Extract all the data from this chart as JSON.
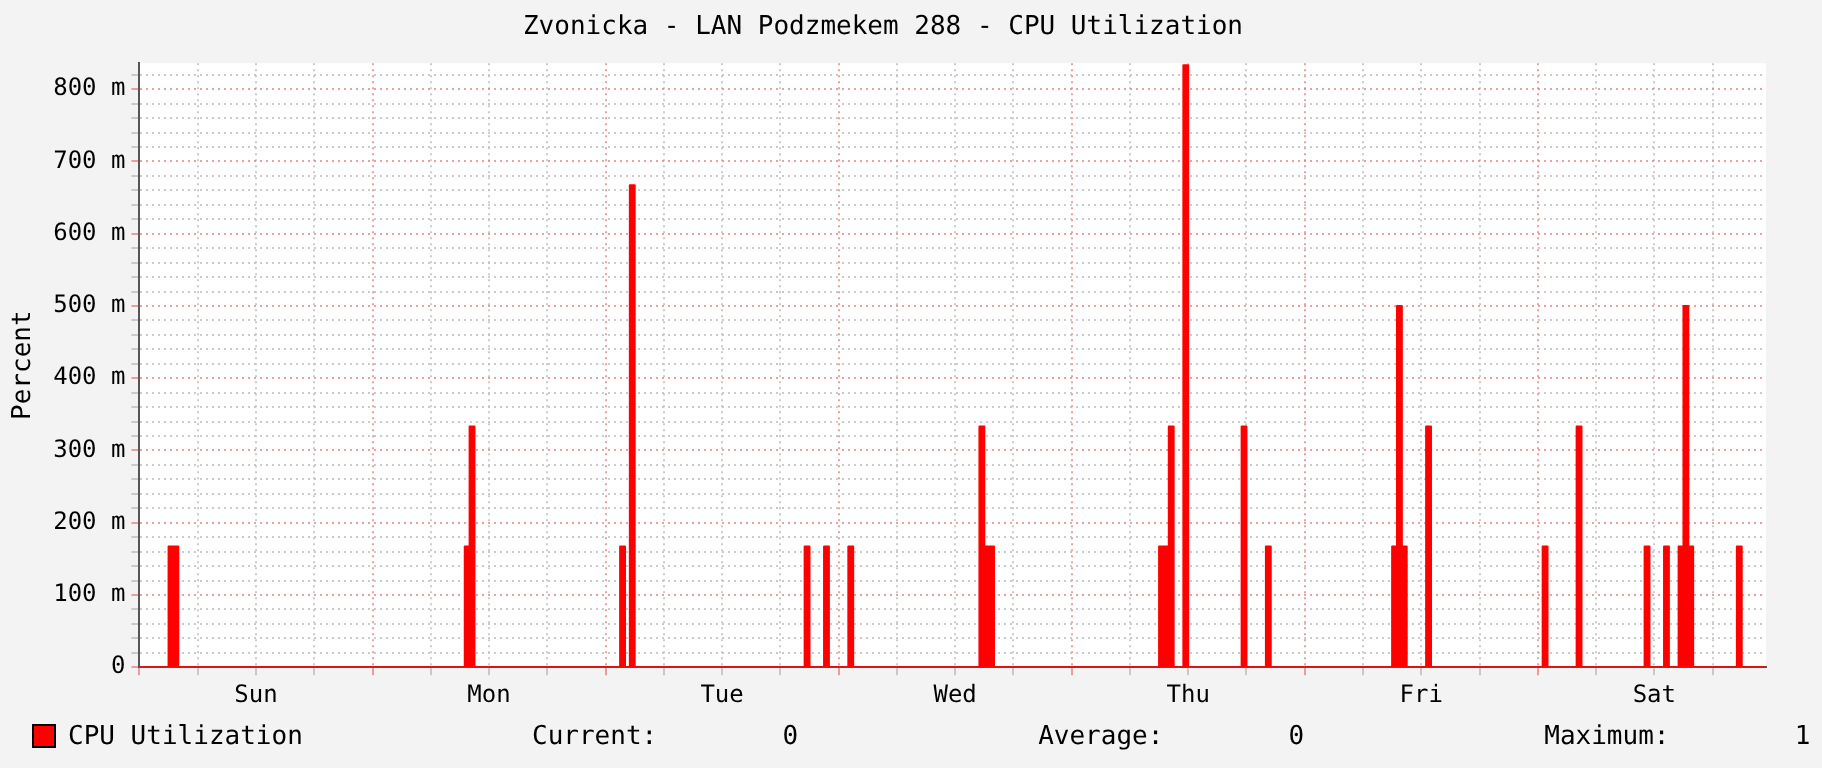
{
  "chart_data": {
    "type": "area",
    "title": "Zvonicka - LAN Podzmekem 288 - CPU Utilization",
    "ylabel": "Percent",
    "categories": [
      null,
      null,
      null,
      null,
      null,
      null,
      null,
      null,
      null,
      null,
      null,
      null,
      null,
      null,
      null,
      null,
      null,
      null,
      null,
      null,
      null,
      null,
      null,
      null,
      "Sun",
      null,
      null,
      null,
      null,
      null,
      null,
      null,
      null,
      null,
      null,
      null,
      null,
      null,
      null,
      null,
      null,
      null,
      null,
      null,
      null,
      null,
      null,
      null,
      null,
      null,
      null,
      null,
      null,
      null,
      null,
      null,
      null,
      null,
      null,
      null,
      null,
      null,
      null,
      null,
      null,
      null,
      null,
      null,
      null,
      null,
      null,
      null,
      "Mon",
      null,
      null,
      null,
      null,
      null,
      null,
      null,
      null,
      null,
      null,
      null,
      null,
      null,
      null,
      null,
      null,
      null,
      null,
      null,
      null,
      null,
      null,
      null,
      null,
      null,
      null,
      null,
      null,
      null,
      null,
      null,
      null,
      null,
      null,
      null,
      null,
      null,
      null,
      null,
      null,
      null,
      null,
      null,
      null,
      null,
      null,
      null,
      "Tue",
      null,
      null,
      null,
      null,
      null,
      null,
      null,
      null,
      null,
      null,
      null,
      null,
      null,
      null,
      null,
      null,
      null,
      null,
      null,
      null,
      null,
      null,
      null,
      null,
      null,
      null,
      null,
      null,
      null,
      null,
      null,
      null,
      null,
      null,
      null,
      null,
      null,
      null,
      null,
      null,
      null,
      null,
      null,
      null,
      null,
      null,
      null,
      "Wed",
      null,
      null,
      null,
      null,
      null,
      null,
      null,
      null,
      null,
      null,
      null,
      null,
      null,
      null,
      null,
      null,
      null,
      null,
      null,
      null,
      null,
      null,
      null,
      null,
      null,
      null,
      null,
      null,
      null,
      null,
      null,
      null,
      null,
      null,
      null,
      null,
      null,
      null,
      null,
      null,
      null,
      null,
      null,
      null,
      null,
      null,
      null,
      "Thu",
      null,
      null,
      null,
      null,
      null,
      null,
      null,
      null,
      null,
      null,
      null,
      null,
      null,
      null,
      null,
      null,
      null,
      null,
      null,
      null,
      null,
      null,
      null,
      null,
      null,
      null,
      null,
      null,
      null,
      null,
      null,
      null,
      null,
      null,
      null,
      null,
      null,
      null,
      null,
      null,
      null,
      null,
      null,
      null,
      null,
      null,
      null,
      "Fri",
      null,
      null,
      null,
      null,
      null,
      null,
      null,
      null,
      null,
      null,
      null,
      null,
      null,
      null,
      null,
      null,
      null,
      null,
      null,
      null,
      null,
      null,
      null,
      null,
      null,
      null,
      null,
      null,
      null,
      null,
      null,
      null,
      null,
      null,
      null,
      null,
      null,
      null,
      null,
      null,
      null,
      null,
      null,
      null,
      null,
      null,
      null,
      "Sat",
      null,
      null,
      null,
      null,
      null,
      null,
      null,
      null,
      null,
      null,
      null,
      null,
      null,
      null,
      null,
      null,
      null,
      null,
      null,
      null,
      null,
      null,
      null
    ],
    "ylim": [
      0,
      836
    ],
    "yticks": [
      0,
      {
        "value": 20,
        "label": null
      },
      {
        "value": 40,
        "label": null
      },
      {
        "value": 60,
        "label": null
      },
      {
        "value": 80,
        "label": null
      },
      {
        "value": 100,
        "label": "100 m"
      },
      {
        "value": 120,
        "label": null
      },
      {
        "value": 140,
        "label": null
      },
      {
        "value": 160,
        "label": null
      },
      {
        "value": 180,
        "label": null
      },
      {
        "value": 200,
        "label": "200 m"
      },
      {
        "value": 220,
        "label": null
      },
      {
        "value": 240,
        "label": null
      },
      {
        "value": 260,
        "label": null
      },
      {
        "value": 280,
        "label": null
      },
      {
        "value": 300,
        "label": "300 m"
      },
      {
        "value": 320,
        "label": null
      },
      {
        "value": 340,
        "label": null
      },
      {
        "value": 360,
        "label": null
      },
      {
        "value": 380,
        "label": null
      },
      {
        "value": 400,
        "label": "400 m"
      },
      {
        "value": 420,
        "label": null
      },
      {
        "value": 440,
        "label": null
      },
      {
        "value": 460,
        "label": null
      },
      {
        "value": 480,
        "label": null
      },
      {
        "value": 500,
        "label": "500 m"
      },
      {
        "value": 520,
        "label": null
      },
      {
        "value": 540,
        "label": null
      },
      {
        "value": 560,
        "label": null
      },
      {
        "value": 580,
        "label": null
      },
      {
        "value": 600,
        "label": "600 m"
      },
      {
        "value": 620,
        "label": null
      },
      {
        "value": 640,
        "label": null
      },
      {
        "value": 660,
        "label": null
      },
      {
        "value": 680,
        "label": null
      },
      {
        "value": 700,
        "label": "700 m"
      },
      {
        "value": 720,
        "label": null
      },
      {
        "value": 740,
        "label": null
      },
      {
        "value": 760,
        "label": null
      },
      {
        "value": 780,
        "label": null
      },
      {
        "value": 800,
        "label": "800 m"
      },
      {
        "value": 820,
        "label": null
      }
    ],
    "grid": true,
    "legend": "bottom left",
    "annotations": [
      "Current:        0",
      "Average:        0",
      "Maximum:        1"
    ],
    "series": [
      {
        "name": "CPU Utilization",
        "color": "#ff0000",
        "values": [
          0,
          0,
          0,
          0,
          0,
          0,
          0,
          167,
          167,
          0,
          0,
          0,
          0,
          0,
          0,
          0,
          0,
          0,
          0,
          0,
          0,
          0,
          0,
          0,
          0,
          0,
          0,
          0,
          0,
          0,
          0,
          0,
          0,
          0,
          0,
          0,
          0,
          0,
          0,
          0,
          0,
          0,
          0,
          0,
          0,
          0,
          0,
          0,
          0,
          0,
          0,
          0,
          0,
          0,
          0,
          0,
          0,
          0,
          0,
          0,
          0,
          0,
          0,
          0,
          0,
          0,
          0,
          0,
          167,
          333,
          0,
          0,
          0,
          0,
          0,
          0,
          0,
          0,
          0,
          0,
          0,
          0,
          0,
          0,
          0,
          0,
          0,
          0,
          0,
          0,
          0,
          0,
          0,
          0,
          0,
          0,
          0,
          0,
          0,
          0,
          167,
          0,
          667,
          0,
          0,
          0,
          0,
          0,
          0,
          0,
          0,
          0,
          0,
          0,
          0,
          0,
          0,
          0,
          0,
          0,
          0,
          0,
          0,
          0,
          0,
          0,
          0,
          0,
          0,
          0,
          0,
          0,
          0,
          0,
          0,
          0,
          0,
          0,
          167,
          0,
          0,
          0,
          167,
          0,
          0,
          0,
          0,
          167,
          0,
          0,
          0,
          0,
          0,
          0,
          0,
          0,
          0,
          0,
          0,
          0,
          0,
          0,
          0,
          0,
          0,
          0,
          0,
          0,
          0,
          0,
          0,
          0,
          0,
          0,
          333,
          167,
          167,
          0,
          0,
          0,
          0,
          0,
          0,
          0,
          0,
          0,
          0,
          0,
          0,
          0,
          0,
          0,
          0,
          0,
          0,
          0,
          0,
          0,
          0,
          0,
          0,
          0,
          0,
          0,
          0,
          0,
          0,
          0,
          0,
          0,
          0,
          167,
          167,
          333,
          0,
          0,
          833,
          0,
          0,
          0,
          0,
          0,
          0,
          0,
          0,
          0,
          0,
          0,
          333,
          0,
          0,
          0,
          0,
          167,
          0,
          0,
          0,
          0,
          0,
          0,
          0,
          0,
          0,
          0,
          0,
          0,
          0,
          0,
          0,
          0,
          0,
          0,
          0,
          0,
          0,
          0,
          0,
          0,
          0,
          167,
          500,
          167,
          0,
          0,
          0,
          0,
          333,
          0,
          0,
          0,
          0,
          0,
          0,
          0,
          0,
          0,
          0,
          0,
          0,
          0,
          0,
          0,
          0,
          0,
          0,
          0,
          0,
          0,
          0,
          0,
          167,
          0,
          0,
          0,
          0,
          0,
          0,
          333,
          0,
          0,
          0,
          0,
          0,
          0,
          0,
          0,
          0,
          0,
          0,
          0,
          0,
          167,
          0,
          0,
          0,
          167,
          0,
          0,
          167,
          500,
          167,
          0,
          0,
          0,
          0,
          0,
          0,
          0,
          0,
          0,
          167,
          0,
          0,
          0,
          0,
          0
        ]
      }
    ]
  }
}
